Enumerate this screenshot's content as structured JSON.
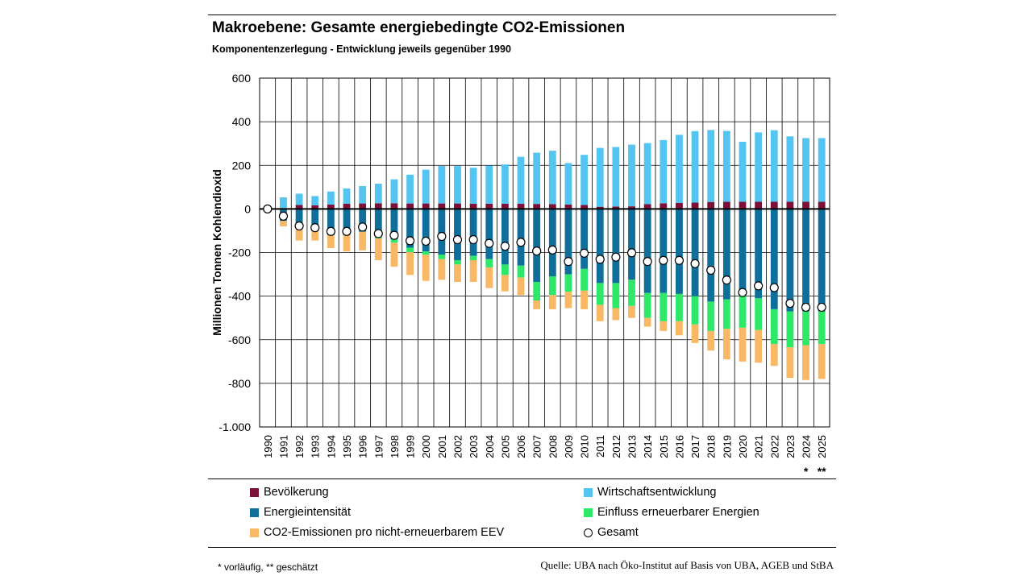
{
  "title": "Makroebene: Gesamte energiebedingte CO2-Emissionen",
  "subtitle": "Komponentenzerlegung  - Entwicklung jeweils gegenüber 1990",
  "footnote": "* vorläufig, ** geschätzt",
  "source": "Quelle: UBA nach Öko-Institut auf Basis von UBA, AGEB und StBA",
  "chart_data": {
    "type": "bar",
    "stacked": true,
    "ylabel": "Millionen Tonnen Kohlendioxid",
    "ylim": [
      -1000,
      600
    ],
    "yticks": [
      600,
      400,
      200,
      0,
      -200,
      -400,
      -600,
      -800,
      -1000
    ],
    "ytick_labels": [
      "600",
      "400",
      "200",
      "0",
      "-200",
      "-400",
      "-600",
      "-800",
      "-1.000"
    ],
    "categories": [
      "1990",
      "1991",
      "1992",
      "1993",
      "1994",
      "1995",
      "1996",
      "1997",
      "1998",
      "1999",
      "2000",
      "2001",
      "2002",
      "2003",
      "2004",
      "2005",
      "2006",
      "2007",
      "2008",
      "2009",
      "2010",
      "2011",
      "2012",
      "2013",
      "2014",
      "2015",
      "2016",
      "2017",
      "2018",
      "2019",
      "2020",
      "2021",
      "2022",
      "2023",
      "2024",
      "2025"
    ],
    "category_marks": {
      "2024": "*",
      "2025": "**"
    },
    "grid": true,
    "legend_position": "bottom",
    "series": [
      {
        "name": "Bevölkerung",
        "color": "#7b1139",
        "values": [
          0,
          3,
          18,
          17,
          20,
          24,
          25,
          26,
          26,
          25,
          25,
          25,
          25,
          24,
          24,
          24,
          24,
          23,
          22,
          20,
          18,
          10,
          11,
          12,
          22,
          26,
          28,
          29,
          32,
          33,
          33,
          33,
          33,
          33,
          33,
          33
        ]
      },
      {
        "name": "Wirtschaftsentwicklung",
        "color": "#54c5f0",
        "values": [
          0,
          50,
          52,
          42,
          60,
          70,
          80,
          90,
          110,
          132,
          155,
          172,
          172,
          165,
          175,
          180,
          215,
          235,
          245,
          190,
          230,
          270,
          273,
          283,
          280,
          290,
          312,
          328,
          330,
          325,
          275,
          318,
          328,
          300,
          292,
          292
        ]
      },
      {
        "name": "Energieintensität",
        "color": "#0f6f9a",
        "values": [
          0,
          -55,
          -90,
          -100,
          -120,
          -120,
          -105,
          -130,
          -140,
          -178,
          -195,
          -210,
          -235,
          -215,
          -230,
          -255,
          -260,
          -335,
          -310,
          -300,
          -275,
          -340,
          -340,
          -325,
          -385,
          -385,
          -390,
          -400,
          -425,
          -415,
          -400,
          -410,
          -460,
          -470,
          -470,
          -470
        ]
      },
      {
        "name": "Einfluss erneuerbarer Energien",
        "color": "#2ee86a",
        "values": [
          0,
          0,
          0,
          0,
          0,
          0,
          0,
          -5,
          -15,
          -20,
          -15,
          -20,
          -20,
          -20,
          -38,
          -48,
          -55,
          -85,
          -85,
          -80,
          -100,
          -100,
          -115,
          -120,
          -115,
          -130,
          -125,
          -130,
          -135,
          -135,
          -145,
          -145,
          -160,
          -165,
          -155,
          -150
        ]
      },
      {
        "name": "CO2-Emissionen pro nicht-erneuerbarem EEV",
        "color": "#f9b866",
        "values": [
          0,
          -25,
          -55,
          -45,
          -60,
          -75,
          -85,
          -100,
          -110,
          -105,
          -120,
          -95,
          -80,
          -100,
          -95,
          -75,
          -80,
          -40,
          -65,
          -75,
          -85,
          -75,
          -55,
          -55,
          -40,
          -45,
          -65,
          -85,
          -90,
          -140,
          -155,
          -150,
          -100,
          -140,
          -160,
          -160
        ]
      }
    ],
    "gesamt": {
      "name": "Gesamt",
      "values": [
        0,
        -33,
        -78,
        -86,
        -103,
        -103,
        -83,
        -113,
        -121,
        -146,
        -148,
        -126,
        -141,
        -141,
        -158,
        -171,
        -153,
        -193,
        -188,
        -241,
        -203,
        -231,
        -221,
        -201,
        -241,
        -236,
        -236,
        -251,
        -281,
        -326,
        -383,
        -353,
        -361,
        -433,
        -451,
        -451
      ]
    }
  }
}
